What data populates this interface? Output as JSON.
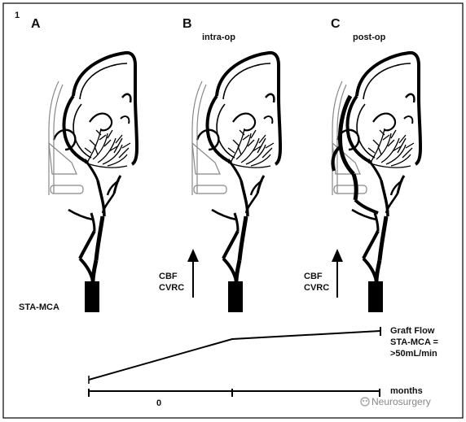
{
  "figure_number": "1",
  "panels": [
    {
      "letter": "A",
      "subtitle": ""
    },
    {
      "letter": "B",
      "subtitle": "intra-op"
    },
    {
      "letter": "C",
      "subtitle": "post-op"
    }
  ],
  "annotations": {
    "cbf": "CBF",
    "cvrc": "CVRC",
    "sta_mca": "STA-MCA"
  },
  "graft_flow": {
    "line1": "Graft Flow",
    "line2": "STA-MCA =",
    "line3": ">50mL/min"
  },
  "timeline": {
    "label": "months",
    "tick_zero": "0"
  },
  "watermark": "Neurosurgery"
}
